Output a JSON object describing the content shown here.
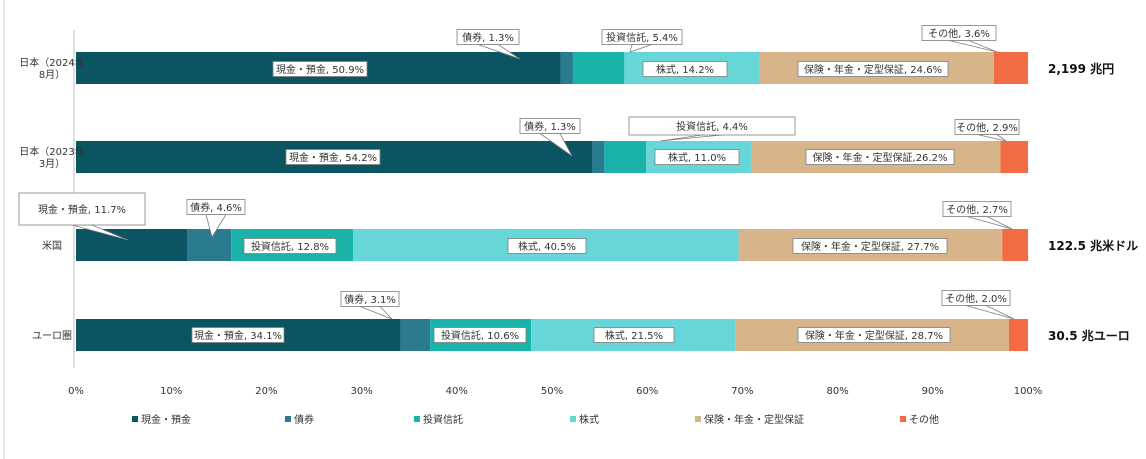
{
  "chart_data": {
    "type": "bar",
    "orientation": "horizontal",
    "stacked": true,
    "percent": true,
    "categories": [
      {
        "label_lines": [
          "日本（2024年",
          "8月）"
        ],
        "total": "2,199 兆円"
      },
      {
        "label_lines": [
          "日本（2023年",
          "3月）"
        ],
        "total": ""
      },
      {
        "label_lines": [
          "米国"
        ],
        "total": "122.5 兆米ドル"
      },
      {
        "label_lines": [
          "ユーロ圏"
        ],
        "total": "30.5 兆ユーロ"
      }
    ],
    "series": [
      {
        "name": "現金・預金",
        "color": "#0b5563",
        "values": [
          50.9,
          54.2,
          11.7,
          34.1
        ]
      },
      {
        "name": "債券",
        "color": "#2a7b8f",
        "values": [
          1.3,
          1.3,
          4.6,
          3.1
        ]
      },
      {
        "name": "投資信託",
        "color": "#1ab3aa",
        "values": [
          5.4,
          4.4,
          12.8,
          10.6
        ]
      },
      {
        "name": "株式",
        "color": "#66d6d9",
        "values": [
          14.2,
          11.0,
          40.5,
          21.5
        ]
      },
      {
        "name": "保険・年金・定型保証",
        "color": "#d8b48a",
        "values": [
          24.6,
          26.2,
          27.7,
          28.7
        ]
      },
      {
        "name": "その他",
        "color": "#f26b43",
        "values": [
          3.6,
          2.9,
          2.7,
          2.0
        ]
      }
    ],
    "segment_labels": [
      [
        "現金・預金, 50.9%",
        "債券, 1.3%",
        "投資信託, 5.4%",
        "株式, 14.2%",
        "保険・年金・定型保証, 24.6%",
        "その他, 3.6%"
      ],
      [
        "現金・預金, 54.2%",
        "債券, 1.3%",
        "投資信託, 4.4%",
        "株式, 11.0%",
        "保険・年金・定型保証,26.2%",
        "その他, 2.9%"
      ],
      [
        "現金・預金, 11.7%",
        "債券, 4.6%",
        "投資信託, 12.8%",
        "株式, 40.5%",
        "保険・年金・定型保証, 27.7%",
        "その他, 2.7%"
      ],
      [
        "現金・預金, 34.1%",
        "債券, 3.1%",
        "投資信託, 10.6%",
        "株式, 21.5%",
        "保険・年金・定型保証, 28.7%",
        "その他, 2.0%"
      ]
    ],
    "x_ticks": [
      "0%",
      "10%",
      "20%",
      "30%",
      "40%",
      "50%",
      "60%",
      "70%",
      "80%",
      "90%",
      "100%"
    ],
    "xlim": [
      0,
      100
    ],
    "grid": false,
    "legend_position": "bottom"
  }
}
